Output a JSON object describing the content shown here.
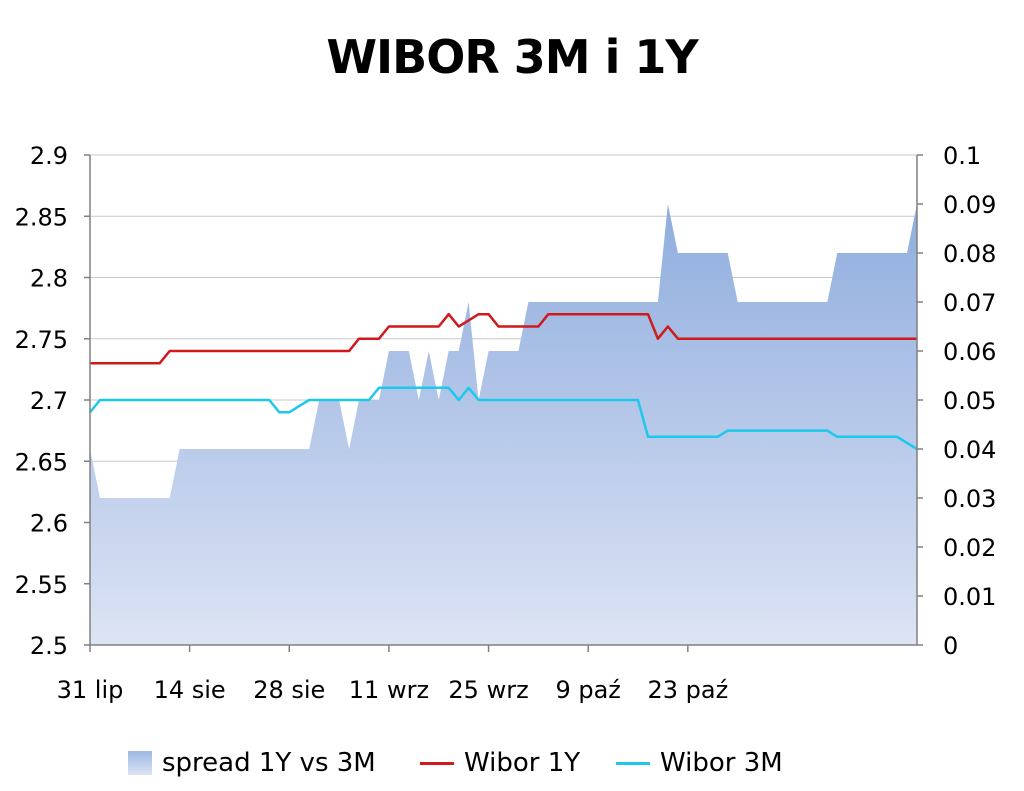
{
  "chart_data": {
    "type": "line",
    "title": "WIBOR 3M i 1Y",
    "x_tick_labels": [
      "31 lip",
      "14 sie",
      "28 sie",
      "11 wrz",
      "25 wrz",
      "9 paź",
      "23 paź"
    ],
    "left_axis": {
      "ylim": [
        2.5,
        2.9
      ],
      "ticks": [
        "2.5",
        "2.55",
        "2.6",
        "2.65",
        "2.7",
        "2.75",
        "2.8",
        "2.85",
        "2.9"
      ]
    },
    "right_axis": {
      "ylim": [
        0,
        0.1
      ],
      "ticks": [
        "0",
        "0.01",
        "0.02",
        "0.03",
        "0.04",
        "0.05",
        "0.06",
        "0.07",
        "0.08",
        "0.09",
        "0.1"
      ]
    },
    "grid": true,
    "legend_position": "bottom",
    "series": [
      {
        "name": "spread 1Y vs 3M",
        "type": "area",
        "axis": "right",
        "color": "#9db8e3",
        "points": [
          [
            0,
            0.04
          ],
          [
            1,
            0.03
          ],
          [
            2,
            0.03
          ],
          [
            3,
            0.03
          ],
          [
            4,
            0.03
          ],
          [
            5,
            0.03
          ],
          [
            6,
            0.03
          ],
          [
            7,
            0.03
          ],
          [
            8,
            0.03
          ],
          [
            9,
            0.04
          ],
          [
            10,
            0.04
          ],
          [
            11,
            0.04
          ],
          [
            12,
            0.04
          ],
          [
            13,
            0.04
          ],
          [
            14,
            0.04
          ],
          [
            15,
            0.04
          ],
          [
            16,
            0.04
          ],
          [
            17,
            0.04
          ],
          [
            18,
            0.04
          ],
          [
            19,
            0.04
          ],
          [
            20,
            0.04
          ],
          [
            21,
            0.04
          ],
          [
            22,
            0.04
          ],
          [
            23,
            0.05
          ],
          [
            24,
            0.05
          ],
          [
            25,
            0.05
          ],
          [
            26,
            0.04
          ],
          [
            27,
            0.05
          ],
          [
            28,
            0.05
          ],
          [
            29,
            0.05
          ],
          [
            30,
            0.06
          ],
          [
            31,
            0.06
          ],
          [
            32,
            0.06
          ],
          [
            33,
            0.05
          ],
          [
            34,
            0.06
          ],
          [
            35,
            0.05
          ],
          [
            36,
            0.06
          ],
          [
            37,
            0.06
          ],
          [
            38,
            0.07
          ],
          [
            39,
            0.05
          ],
          [
            40,
            0.06
          ],
          [
            41,
            0.06
          ],
          [
            42,
            0.06
          ],
          [
            43,
            0.06
          ],
          [
            44,
            0.07
          ],
          [
            45,
            0.07
          ],
          [
            46,
            0.07
          ],
          [
            47,
            0.07
          ],
          [
            48,
            0.07
          ],
          [
            49,
            0.07
          ],
          [
            50,
            0.07
          ],
          [
            51,
            0.07
          ],
          [
            52,
            0.07
          ],
          [
            53,
            0.07
          ],
          [
            54,
            0.07
          ],
          [
            55,
            0.07
          ],
          [
            56,
            0.07
          ],
          [
            57,
            0.07
          ],
          [
            58,
            0.09
          ],
          [
            59,
            0.08
          ],
          [
            60,
            0.08
          ],
          [
            61,
            0.08
          ],
          [
            62,
            0.08
          ],
          [
            63,
            0.08
          ],
          [
            64,
            0.08
          ],
          [
            65,
            0.07
          ],
          [
            66,
            0.07
          ],
          [
            67,
            0.07
          ],
          [
            68,
            0.07
          ],
          [
            69,
            0.07
          ],
          [
            70,
            0.07
          ],
          [
            71,
            0.07
          ],
          [
            72,
            0.07
          ],
          [
            73,
            0.07
          ],
          [
            74,
            0.07
          ],
          [
            75,
            0.08
          ],
          [
            76,
            0.08
          ],
          [
            77,
            0.08
          ],
          [
            78,
            0.08
          ],
          [
            79,
            0.08
          ],
          [
            80,
            0.08
          ],
          [
            81,
            0.08
          ],
          [
            82,
            0.08
          ],
          [
            83,
            0.09
          ]
        ]
      },
      {
        "name": "Wibor 1Y",
        "type": "line",
        "axis": "left",
        "color": "#d0191c",
        "points": [
          [
            0,
            2.73
          ],
          [
            1,
            2.73
          ],
          [
            2,
            2.73
          ],
          [
            3,
            2.73
          ],
          [
            4,
            2.73
          ],
          [
            5,
            2.73
          ],
          [
            6,
            2.73
          ],
          [
            7,
            2.73
          ],
          [
            8,
            2.74
          ],
          [
            9,
            2.74
          ],
          [
            10,
            2.74
          ],
          [
            11,
            2.74
          ],
          [
            12,
            2.74
          ],
          [
            13,
            2.74
          ],
          [
            14,
            2.74
          ],
          [
            15,
            2.74
          ],
          [
            16,
            2.74
          ],
          [
            17,
            2.74
          ],
          [
            18,
            2.74
          ],
          [
            19,
            2.74
          ],
          [
            20,
            2.74
          ],
          [
            21,
            2.74
          ],
          [
            22,
            2.74
          ],
          [
            23,
            2.74
          ],
          [
            24,
            2.74
          ],
          [
            25,
            2.74
          ],
          [
            26,
            2.74
          ],
          [
            27,
            2.75
          ],
          [
            28,
            2.75
          ],
          [
            29,
            2.75
          ],
          [
            30,
            2.76
          ],
          [
            31,
            2.76
          ],
          [
            32,
            2.76
          ],
          [
            33,
            2.76
          ],
          [
            34,
            2.76
          ],
          [
            35,
            2.76
          ],
          [
            36,
            2.77
          ],
          [
            37,
            2.76
          ],
          [
            38,
            2.765
          ],
          [
            39,
            2.77
          ],
          [
            40,
            2.77
          ],
          [
            41,
            2.76
          ],
          [
            42,
            2.76
          ],
          [
            43,
            2.76
          ],
          [
            44,
            2.76
          ],
          [
            45,
            2.76
          ],
          [
            46,
            2.77
          ],
          [
            47,
            2.77
          ],
          [
            48,
            2.77
          ],
          [
            49,
            2.77
          ],
          [
            50,
            2.77
          ],
          [
            51,
            2.77
          ],
          [
            52,
            2.77
          ],
          [
            53,
            2.77
          ],
          [
            54,
            2.77
          ],
          [
            55,
            2.77
          ],
          [
            56,
            2.77
          ],
          [
            57,
            2.75
          ],
          [
            58,
            2.76
          ],
          [
            59,
            2.75
          ],
          [
            60,
            2.75
          ],
          [
            61,
            2.75
          ],
          [
            62,
            2.75
          ],
          [
            63,
            2.75
          ],
          [
            64,
            2.75
          ],
          [
            65,
            2.75
          ],
          [
            66,
            2.75
          ],
          [
            67,
            2.75
          ],
          [
            68,
            2.75
          ],
          [
            69,
            2.75
          ],
          [
            70,
            2.75
          ],
          [
            71,
            2.75
          ],
          [
            72,
            2.75
          ],
          [
            73,
            2.75
          ],
          [
            74,
            2.75
          ],
          [
            75,
            2.75
          ],
          [
            76,
            2.75
          ],
          [
            77,
            2.75
          ],
          [
            78,
            2.75
          ],
          [
            79,
            2.75
          ],
          [
            80,
            2.75
          ],
          [
            81,
            2.75
          ],
          [
            82,
            2.75
          ],
          [
            83,
            2.75
          ]
        ]
      },
      {
        "name": "Wibor 3M",
        "type": "line",
        "axis": "left",
        "color": "#1ec8ea",
        "points": [
          [
            0,
            2.69
          ],
          [
            1,
            2.7
          ],
          [
            2,
            2.7
          ],
          [
            3,
            2.7
          ],
          [
            4,
            2.7
          ],
          [
            5,
            2.7
          ],
          [
            6,
            2.7
          ],
          [
            7,
            2.7
          ],
          [
            8,
            2.7
          ],
          [
            9,
            2.7
          ],
          [
            10,
            2.7
          ],
          [
            11,
            2.7
          ],
          [
            12,
            2.7
          ],
          [
            13,
            2.7
          ],
          [
            14,
            2.7
          ],
          [
            15,
            2.7
          ],
          [
            16,
            2.7
          ],
          [
            17,
            2.7
          ],
          [
            18,
            2.7
          ],
          [
            19,
            2.69
          ],
          [
            20,
            2.69
          ],
          [
            21,
            2.695
          ],
          [
            22,
            2.7
          ],
          [
            23,
            2.7
          ],
          [
            24,
            2.7
          ],
          [
            25,
            2.7
          ],
          [
            26,
            2.7
          ],
          [
            27,
            2.7
          ],
          [
            28,
            2.7
          ],
          [
            29,
            2.71
          ],
          [
            30,
            2.71
          ],
          [
            31,
            2.71
          ],
          [
            32,
            2.71
          ],
          [
            33,
            2.71
          ],
          [
            34,
            2.71
          ],
          [
            35,
            2.71
          ],
          [
            36,
            2.71
          ],
          [
            37,
            2.7
          ],
          [
            38,
            2.71
          ],
          [
            39,
            2.7
          ],
          [
            40,
            2.7
          ],
          [
            41,
            2.7
          ],
          [
            42,
            2.7
          ],
          [
            43,
            2.7
          ],
          [
            44,
            2.7
          ],
          [
            45,
            2.7
          ],
          [
            46,
            2.7
          ],
          [
            47,
            2.7
          ],
          [
            48,
            2.7
          ],
          [
            49,
            2.7
          ],
          [
            50,
            2.7
          ],
          [
            51,
            2.7
          ],
          [
            52,
            2.7
          ],
          [
            53,
            2.7
          ],
          [
            54,
            2.7
          ],
          [
            55,
            2.7
          ],
          [
            56,
            2.67
          ],
          [
            57,
            2.67
          ],
          [
            58,
            2.67
          ],
          [
            59,
            2.67
          ],
          [
            60,
            2.67
          ],
          [
            61,
            2.67
          ],
          [
            62,
            2.67
          ],
          [
            63,
            2.67
          ],
          [
            64,
            2.675
          ],
          [
            65,
            2.675
          ],
          [
            66,
            2.675
          ],
          [
            67,
            2.675
          ],
          [
            68,
            2.675
          ],
          [
            69,
            2.675
          ],
          [
            70,
            2.675
          ],
          [
            71,
            2.675
          ],
          [
            72,
            2.675
          ],
          [
            73,
            2.675
          ],
          [
            74,
            2.675
          ],
          [
            75,
            2.67
          ],
          [
            76,
            2.67
          ],
          [
            77,
            2.67
          ],
          [
            78,
            2.67
          ],
          [
            79,
            2.67
          ],
          [
            80,
            2.67
          ],
          [
            81,
            2.67
          ],
          [
            82,
            2.665
          ],
          [
            83,
            2.66
          ]
        ]
      }
    ]
  }
}
